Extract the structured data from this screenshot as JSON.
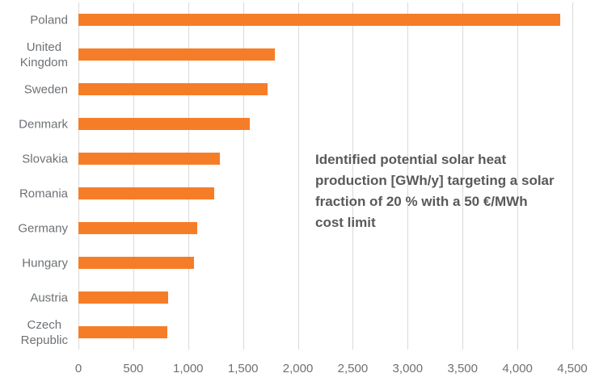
{
  "chart_data": {
    "type": "bar",
    "orientation": "horizontal",
    "title": "",
    "categories": [
      "Poland",
      "United Kingdom",
      "Sweden",
      "Denmark",
      "Slovakia",
      "Romania",
      "Germany",
      "Hungary",
      "Austria",
      "Czech Republic"
    ],
    "category_display_lines": [
      [
        "Poland"
      ],
      [
        "United",
        "Kingdom"
      ],
      [
        "Sweden"
      ],
      [
        "Denmark"
      ],
      [
        "Slovakia"
      ],
      [
        "Romania"
      ],
      [
        "Germany"
      ],
      [
        "Hungary"
      ],
      [
        "Austria"
      ],
      [
        "Czech",
        "Republic"
      ]
    ],
    "values": [
      4390,
      1790,
      1720,
      1560,
      1290,
      1240,
      1080,
      1050,
      820,
      810
    ],
    "xlim": [
      0,
      4500
    ],
    "xticks": [
      0,
      500,
      1000,
      1500,
      2000,
      2500,
      3000,
      3500,
      4000,
      4500
    ],
    "xtick_labels": [
      "0",
      "500",
      "1,000",
      "1,500",
      "2,000",
      "2,500",
      "3,000",
      "3,500",
      "4,000",
      "4,500"
    ],
    "grid": "vertical",
    "legend": "none",
    "colors": {
      "bar": "#F67D28",
      "gridline": "#D9D9D9",
      "axis_label": "#6D7175",
      "annotation_text": "#595959",
      "background": "#FFFFFF"
    }
  },
  "annotation": {
    "text": "Identified potential solar heat production [GWh/y] targeting a solar fraction of 20 % with a 50 €/MWh cost limit",
    "lines": [
      "Identified potential solar heat",
      "production [GWh/y] targeting a solar",
      "fraction of 20 % with a 50 €/MWh",
      "cost limit"
    ]
  }
}
